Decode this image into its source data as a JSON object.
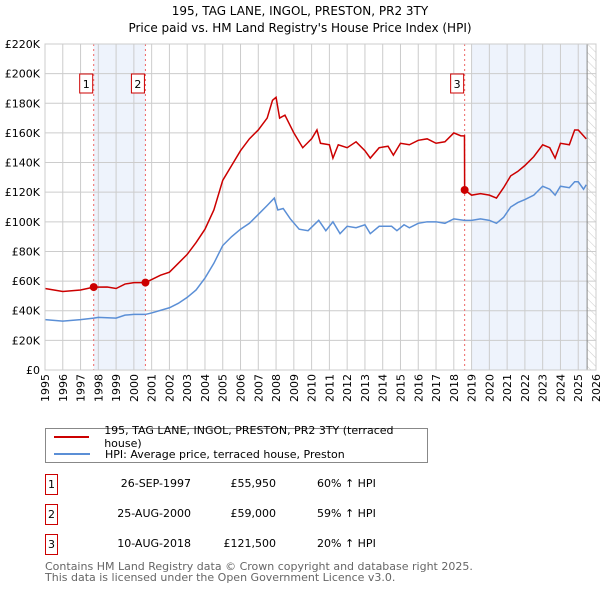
{
  "title": "195, TAG LANE, INGOL, PRESTON, PR2 3TY",
  "subtitle": "Price paid vs. HM Land Registry's House Price Index (HPI)",
  "colors": {
    "property": "#cc0000",
    "hpi": "#5b8fd6",
    "shade": "#eef3fc"
  },
  "chart_data": {
    "type": "line",
    "xlim": [
      1995,
      2026
    ],
    "ylim": [
      0,
      220000
    ],
    "xticks": [
      "1995",
      "1996",
      "1997",
      "1998",
      "1999",
      "2000",
      "2001",
      "2002",
      "2003",
      "2004",
      "2005",
      "2006",
      "2007",
      "2008",
      "2009",
      "2010",
      "2011",
      "2012",
      "2013",
      "2014",
      "2015",
      "2016",
      "2017",
      "2018",
      "2019",
      "2020",
      "2021",
      "2022",
      "2023",
      "2024",
      "2025",
      "2026"
    ],
    "yticks": [
      {
        "v": 0,
        "label": "£0"
      },
      {
        "v": 20000,
        "label": "£20K"
      },
      {
        "v": 40000,
        "label": "£40K"
      },
      {
        "v": 60000,
        "label": "£60K"
      },
      {
        "v": 80000,
        "label": "£80K"
      },
      {
        "v": 100000,
        "label": "£100K"
      },
      {
        "v": 120000,
        "label": "£120K"
      },
      {
        "v": 140000,
        "label": "£140K"
      },
      {
        "v": 160000,
        "label": "£160K"
      },
      {
        "v": 180000,
        "label": "£180K"
      },
      {
        "v": 200000,
        "label": "£200K"
      },
      {
        "v": 220000,
        "label": "£220K"
      }
    ],
    "grid": true,
    "shaded_ranges": [
      [
        1997.74,
        2000.65
      ],
      [
        2019.0,
        2025.5
      ]
    ],
    "hatched_range": [
      2025.5,
      2026
    ],
    "series": [
      {
        "name": "195, TAG LANE, INGOL, PRESTON, PR2 3TY (terraced house)",
        "color": "#cc0000",
        "x": [
          1995,
          1996,
          1997,
          1997.74,
          1998.5,
          1999,
          1999.5,
          2000,
          2000.65,
          2001,
          2001.5,
          2002,
          2002.5,
          2003,
          2003.5,
          2004,
          2004.5,
          2005,
          2005.5,
          2006,
          2006.5,
          2007,
          2007.5,
          2007.8,
          2008,
          2008.2,
          2008.5,
          2009,
          2009.5,
          2010,
          2010.3,
          2010.5,
          2011,
          2011.2,
          2011.5,
          2012,
          2012.5,
          2013,
          2013.3,
          2013.8,
          2014.3,
          2014.6,
          2015,
          2015.5,
          2016,
          2016.5,
          2017,
          2017.5,
          2018,
          2018.4,
          2018.6,
          2018.61,
          2019,
          2019.5,
          2020,
          2020.4,
          2020.8,
          2021.2,
          2021.6,
          2022,
          2022.5,
          2023,
          2023.4,
          2023.7,
          2024,
          2024.5,
          2024.8,
          2025,
          2025.3,
          2025.45
        ],
        "y": [
          55000,
          53000,
          54000,
          55950,
          56000,
          55000,
          58000,
          59000,
          59000,
          61000,
          64000,
          66000,
          72000,
          78000,
          86000,
          95000,
          108000,
          128000,
          138000,
          148000,
          156000,
          162000,
          170000,
          182000,
          184000,
          170000,
          172000,
          160000,
          150000,
          156000,
          162000,
          153000,
          152000,
          143000,
          152000,
          150000,
          154000,
          148000,
          143000,
          150000,
          151000,
          145000,
          153000,
          152000,
          155000,
          156000,
          153000,
          154000,
          160000,
          158000,
          158000,
          121500,
          118000,
          119000,
          118000,
          116000,
          123000,
          131000,
          134000,
          138000,
          144000,
          152000,
          150000,
          143000,
          153000,
          152000,
          162000,
          162000,
          158000,
          156000
        ]
      },
      {
        "name": "HPI: Average price, terraced house, Preston",
        "color": "#5b8fd6",
        "x": [
          1995,
          1996,
          1997,
          1997.74,
          1998,
          1999,
          1999.5,
          2000,
          2000.65,
          2001,
          2002,
          2002.5,
          2003,
          2003.5,
          2004,
          2004.5,
          2005,
          2005.5,
          2006,
          2006.5,
          2007,
          2007.5,
          2007.9,
          2008.1,
          2008.4,
          2008.8,
          2009.3,
          2009.8,
          2010.4,
          2010.8,
          2011.2,
          2011.6,
          2012,
          2012.5,
          2013,
          2013.3,
          2013.8,
          2014.5,
          2014.8,
          2015.2,
          2015.5,
          2016,
          2016.5,
          2017,
          2017.5,
          2018,
          2018.6,
          2019,
          2019.5,
          2020,
          2020.4,
          2020.8,
          2021.2,
          2021.6,
          2022,
          2022.5,
          2023,
          2023.4,
          2023.7,
          2024,
          2024.5,
          2024.8,
          2025,
          2025.3,
          2025.45
        ],
        "y": [
          34000,
          33000,
          34000,
          35000,
          35500,
          35000,
          37000,
          37500,
          37500,
          38500,
          42000,
          45000,
          49000,
          54000,
          62000,
          72000,
          84000,
          90000,
          95000,
          99000,
          105000,
          111000,
          116000,
          108000,
          109000,
          102000,
          95000,
          94000,
          101000,
          94000,
          100000,
          92000,
          97000,
          96000,
          98000,
          92000,
          97000,
          97000,
          94000,
          98000,
          96000,
          99000,
          100000,
          100000,
          99000,
          102000,
          101000,
          101000,
          102000,
          101000,
          99000,
          103000,
          110000,
          113000,
          115000,
          118000,
          124000,
          122000,
          118000,
          124000,
          123000,
          127000,
          127000,
          122000,
          125000
        ]
      }
    ],
    "sales": [
      {
        "label": "1",
        "x": 1997.74,
        "y": 55950
      },
      {
        "label": "2",
        "x": 2000.65,
        "y": 59000
      },
      {
        "label": "3",
        "x": 2018.61,
        "y": 121500
      }
    ]
  },
  "legend": {
    "property": "195, TAG LANE, INGOL, PRESTON, PR2 3TY (terraced house)",
    "hpi": "HPI: Average price, terraced house, Preston"
  },
  "table": [
    {
      "num": "1",
      "date": "26-SEP-1997",
      "price": "£55,950",
      "delta": "60% ↑ HPI"
    },
    {
      "num": "2",
      "date": "25-AUG-2000",
      "price": "£59,000",
      "delta": "59% ↑ HPI"
    },
    {
      "num": "3",
      "date": "10-AUG-2018",
      "price": "£121,500",
      "delta": "20% ↑ HPI"
    }
  ],
  "footer": {
    "line1": "Contains HM Land Registry data © Crown copyright and database right 2025.",
    "line2": "This data is licensed under the Open Government Licence v3.0."
  }
}
